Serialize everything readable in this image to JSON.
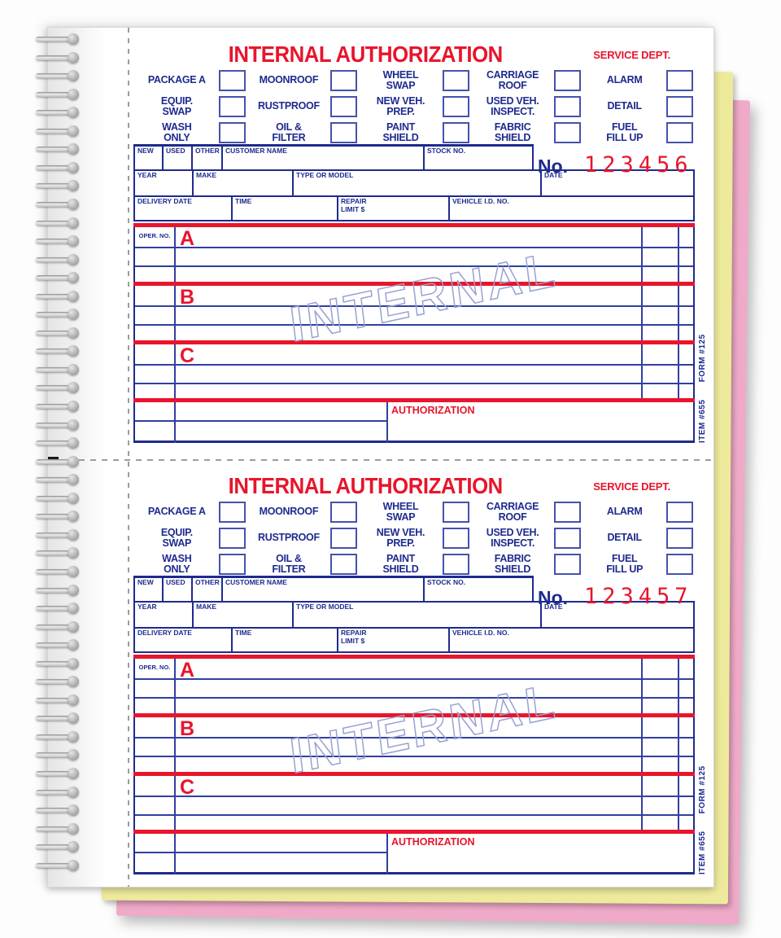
{
  "product": {
    "form_title": "INTERNAL AUTHORIZATION",
    "service_dept": "SERVICE DEPT.",
    "no_label": "No.",
    "oper_no_label": "OPER. NO.",
    "authorization_label": "AUTHORIZATION",
    "watermark": "INTERNAL",
    "side_item": "ITEM #655",
    "side_form": "FORM #125",
    "section_letters": [
      "A",
      "B",
      "C"
    ],
    "checkbox_rows": [
      [
        "PACKAGE A",
        "MOONROOF",
        "WHEEL\nSWAP",
        "CARRIAGE\nROOF",
        "ALARM"
      ],
      [
        "EQUIP.\nSWAP",
        "RUSTPROOF",
        "NEW VEH.\nPREP.",
        "USED VEH.\nINSPECT.",
        "DETAIL"
      ],
      [
        "WASH\nONLY",
        "OIL &\nFILTER",
        "PAINT\nSHIELD",
        "FABRIC\nSHIELD",
        "FUEL\nFILL UP"
      ]
    ],
    "field_rows": [
      [
        "NEW",
        "USED",
        "OTHER",
        "CUSTOMER NAME",
        "STOCK NO."
      ],
      [
        "YEAR",
        "MAKE",
        "TYPE OR MODEL",
        "DATE"
      ],
      [
        "DELIVERY DATE",
        "TIME",
        "REPAIR\nLIMIT $",
        "VEHICLE I.D. NO."
      ]
    ],
    "forms": [
      {
        "number": "123456"
      },
      {
        "number": "123457"
      }
    ],
    "colors": {
      "red": "#e8152c",
      "navy": "#1e2b8e",
      "checkbox_blue": "#4353ae",
      "line_blue": "#3040a0",
      "watermark_blue": "#98a2d4",
      "yellow_sheet": "#edea9c",
      "pink_sheet": "#f0aac9"
    }
  }
}
